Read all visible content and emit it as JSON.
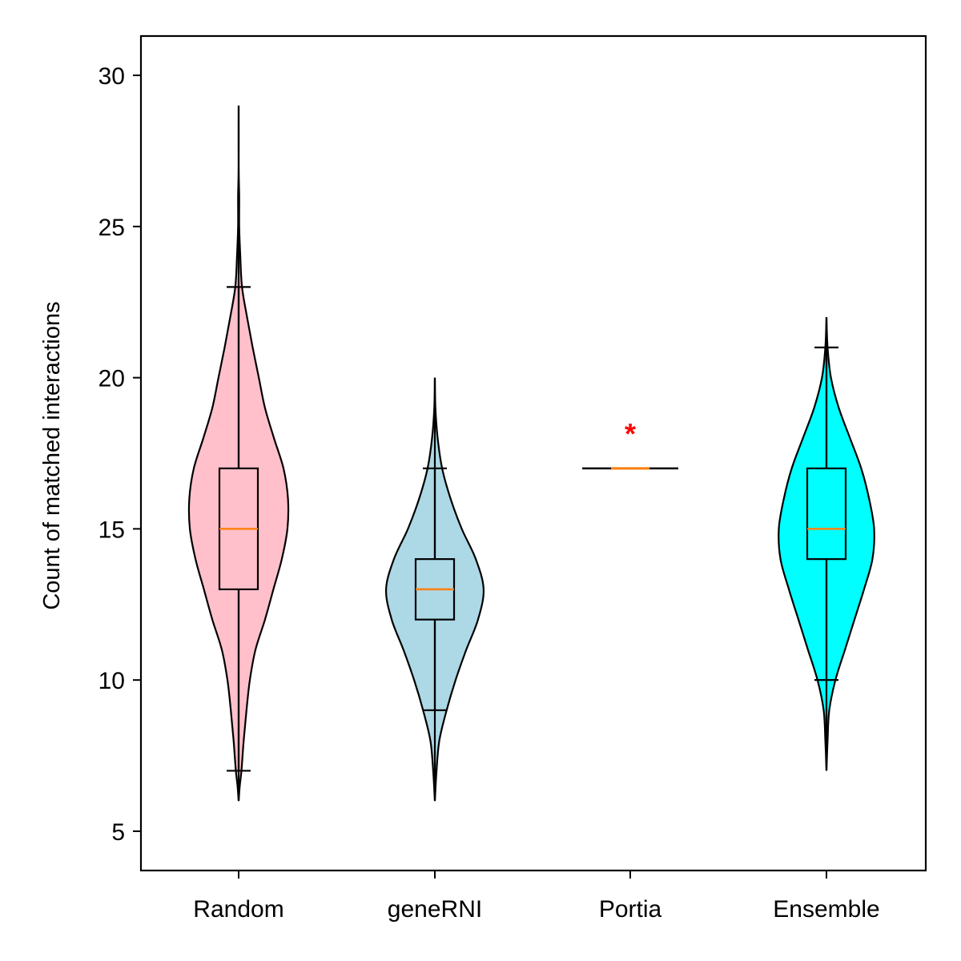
{
  "chart_data": {
    "type": "violin",
    "title": "",
    "xlabel": "",
    "ylabel": "Count of matched interactions",
    "ylim": [
      3.7,
      31.3
    ],
    "yticks": [
      5,
      10,
      15,
      20,
      25,
      30
    ],
    "grid": false,
    "legend": "none",
    "categories": [
      "Random",
      "geneRNI",
      "Portia",
      "Ensemble"
    ],
    "series": [
      {
        "category": "Random",
        "color": "#ffc0cb",
        "min": 6,
        "max": 29,
        "whisker_low": 7,
        "q1": 13,
        "median": 15,
        "q3": 17,
        "whisker_high": 23,
        "density_profile": [
          [
            6,
            0.0
          ],
          [
            6.5,
            0.02
          ],
          [
            7,
            0.05
          ],
          [
            8,
            0.09
          ],
          [
            9,
            0.14
          ],
          [
            10,
            0.2
          ],
          [
            11,
            0.3
          ],
          [
            12,
            0.47
          ],
          [
            13,
            0.62
          ],
          [
            14,
            0.77
          ],
          [
            15,
            0.87
          ],
          [
            16,
            0.88
          ],
          [
            17,
            0.8
          ],
          [
            18,
            0.63
          ],
          [
            19,
            0.47
          ],
          [
            20,
            0.36
          ],
          [
            21,
            0.25
          ],
          [
            22,
            0.15
          ],
          [
            23,
            0.06
          ],
          [
            24,
            0.03
          ],
          [
            25,
            0.01
          ],
          [
            26,
            0.01
          ],
          [
            27,
            0.0
          ],
          [
            29,
            0.0
          ]
        ]
      },
      {
        "category": "geneRNI",
        "color": "#add8e6",
        "min": 6,
        "max": 20,
        "whisker_low": 9,
        "q1": 12,
        "median": 13,
        "q3": 14,
        "whisker_high": 17,
        "density_profile": [
          [
            6,
            0.0
          ],
          [
            7,
            0.03
          ],
          [
            8,
            0.08
          ],
          [
            9,
            0.21
          ],
          [
            10,
            0.37
          ],
          [
            11,
            0.56
          ],
          [
            12,
            0.77
          ],
          [
            13,
            0.87
          ],
          [
            14,
            0.73
          ],
          [
            15,
            0.48
          ],
          [
            16,
            0.28
          ],
          [
            17,
            0.13
          ],
          [
            18,
            0.05
          ],
          [
            19,
            0.01
          ],
          [
            20,
            0.0
          ]
        ]
      },
      {
        "category": "Portia",
        "color": "#000000",
        "min": 17,
        "max": 17,
        "whisker_low": 17,
        "q1": 17,
        "median": 17,
        "q3": 17,
        "whisker_high": 17,
        "density_profile": []
      },
      {
        "category": "Ensemble",
        "color": "#00ffff",
        "min": 7,
        "max": 22,
        "whisker_low": 10,
        "q1": 14,
        "median": 15,
        "q3": 17,
        "whisker_high": 21,
        "density_profile": [
          [
            7,
            0.0
          ],
          [
            8,
            0.02
          ],
          [
            9,
            0.05
          ],
          [
            10,
            0.16
          ],
          [
            11,
            0.33
          ],
          [
            12,
            0.5
          ],
          [
            13,
            0.67
          ],
          [
            14,
            0.82
          ],
          [
            15,
            0.85
          ],
          [
            16,
            0.76
          ],
          [
            17,
            0.62
          ],
          [
            18,
            0.42
          ],
          [
            19,
            0.22
          ],
          [
            20,
            0.08
          ],
          [
            21,
            0.02
          ],
          [
            22,
            0.0
          ]
        ]
      }
    ],
    "annotations": [
      {
        "category": "Portia",
        "y": 18.3,
        "text": "*",
        "color": "#ff0000"
      }
    ],
    "median_color": "#ff7f0e"
  }
}
